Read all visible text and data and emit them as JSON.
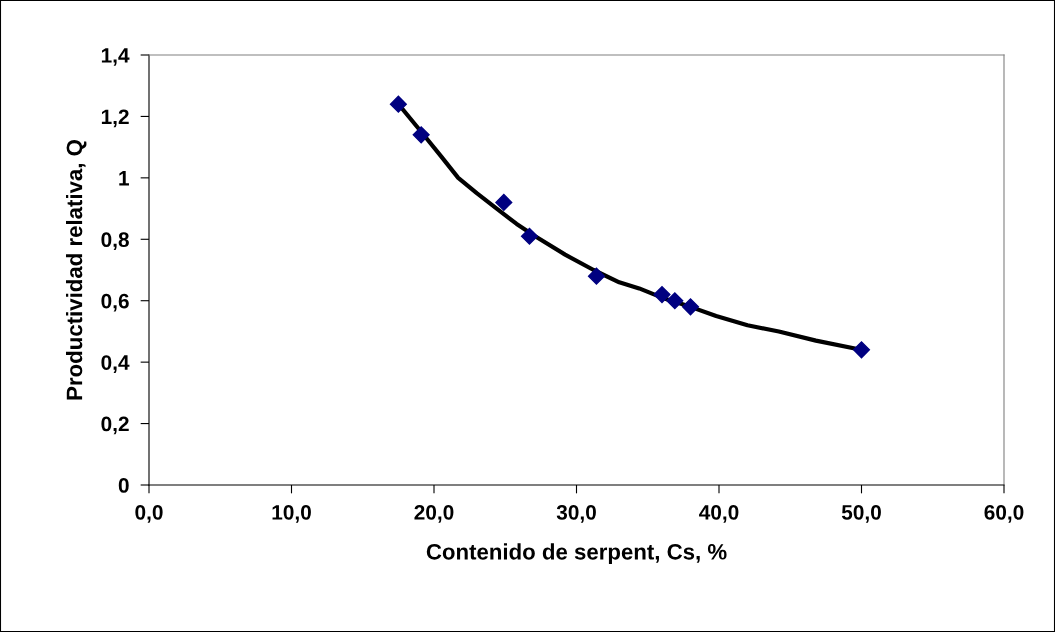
{
  "chart_data": {
    "type": "scatter",
    "xlabel": "Contenido de serpent, Cs, %",
    "ylabel": "Productividad relativa, Q",
    "grid": false,
    "legend": false,
    "xlim": [
      0,
      60
    ],
    "xticks": [
      {
        "value": 0,
        "label": "0,0"
      },
      {
        "value": 10,
        "label": "10,0"
      },
      {
        "value": 20,
        "label": "20,0"
      },
      {
        "value": 30,
        "label": "30,0"
      },
      {
        "value": 40,
        "label": "40,0"
      },
      {
        "value": 50,
        "label": "50,0"
      },
      {
        "value": 60,
        "label": "60,0"
      }
    ],
    "ylim": [
      0,
      1.4
    ],
    "yticks": [
      0,
      {
        "value": 0.2,
        "label": "0,2"
      },
      {
        "value": 0.4,
        "label": "0,4"
      },
      {
        "value": 0.6,
        "label": "0,6"
      },
      {
        "value": 0.8,
        "label": "0,8"
      },
      1,
      {
        "value": 1.2,
        "label": "1,2"
      },
      {
        "value": 1.4,
        "label": "1,4"
      }
    ],
    "series": [
      {
        "type": "line",
        "color": "#000000",
        "marker": "none",
        "line_style": "solid",
        "x": [
          17.5,
          19.1,
          20.5,
          21.7,
          23.0,
          24.4,
          25.8,
          27.1,
          29.2,
          31.2,
          33.0,
          34.4,
          36.0,
          38.0,
          39.8,
          42.0,
          44.2,
          46.8,
          50.0
        ],
        "values": [
          1.24,
          1.15,
          1.07,
          1.0,
          0.95,
          0.9,
          0.85,
          0.81,
          0.75,
          0.7,
          0.66,
          0.64,
          0.61,
          0.58,
          0.55,
          0.52,
          0.5,
          0.47,
          0.44
        ]
      },
      {
        "color": "#000080",
        "marker": "diamond",
        "x": [
          17.5,
          19.1,
          24.9,
          26.7,
          31.4,
          36.0,
          36.9,
          38.0,
          50.0
        ],
        "values": [
          1.24,
          1.14,
          0.92,
          0.81,
          0.68,
          0.62,
          0.6,
          0.58,
          0.44
        ]
      }
    ]
  }
}
